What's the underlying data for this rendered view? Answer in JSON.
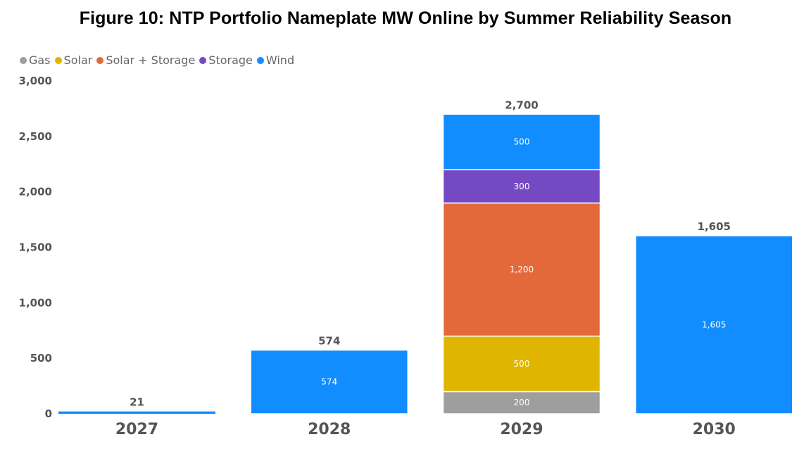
{
  "chart_data": {
    "type": "bar",
    "stacked": true,
    "title": "Figure 10: NTP Portfolio Nameplate MW Online by Summer Reliability Season",
    "xlabel": "",
    "ylabel": "",
    "ylim": [
      0,
      3000
    ],
    "yticks": [
      0,
      500,
      1000,
      1500,
      2000,
      2500,
      3000
    ],
    "ytick_labels": [
      "0",
      "500",
      "1,000",
      "1,500",
      "2,000",
      "2,500",
      "3,000"
    ],
    "grid": false,
    "legend_position": "top-left",
    "categories": [
      "2027",
      "2028",
      "2029",
      "2030"
    ],
    "series": [
      {
        "name": "Gas",
        "color": "#9e9e9e",
        "values": [
          0,
          0,
          200,
          0
        ],
        "labels": [
          "",
          "",
          "200",
          ""
        ]
      },
      {
        "name": "Solar",
        "color": "#dfb500",
        "values": [
          0,
          0,
          500,
          0
        ],
        "labels": [
          "",
          "",
          "500",
          ""
        ]
      },
      {
        "name": "Solar + Storage",
        "color": "#e4693a",
        "values": [
          0,
          0,
          1200,
          0
        ],
        "labels": [
          "",
          "",
          "1,200",
          ""
        ]
      },
      {
        "name": "Storage",
        "color": "#7449c2",
        "values": [
          0,
          0,
          300,
          0
        ],
        "labels": [
          "",
          "",
          "300",
          ""
        ]
      },
      {
        "name": "Wind",
        "color": "#118dff",
        "values": [
          21,
          574,
          500,
          1605
        ],
        "labels": [
          "",
          "574",
          "500",
          "1,605"
        ]
      }
    ],
    "totals": [
      21,
      574,
      2700,
      1605
    ],
    "total_labels": [
      "21",
      "574",
      "2,700",
      "1,605"
    ]
  }
}
